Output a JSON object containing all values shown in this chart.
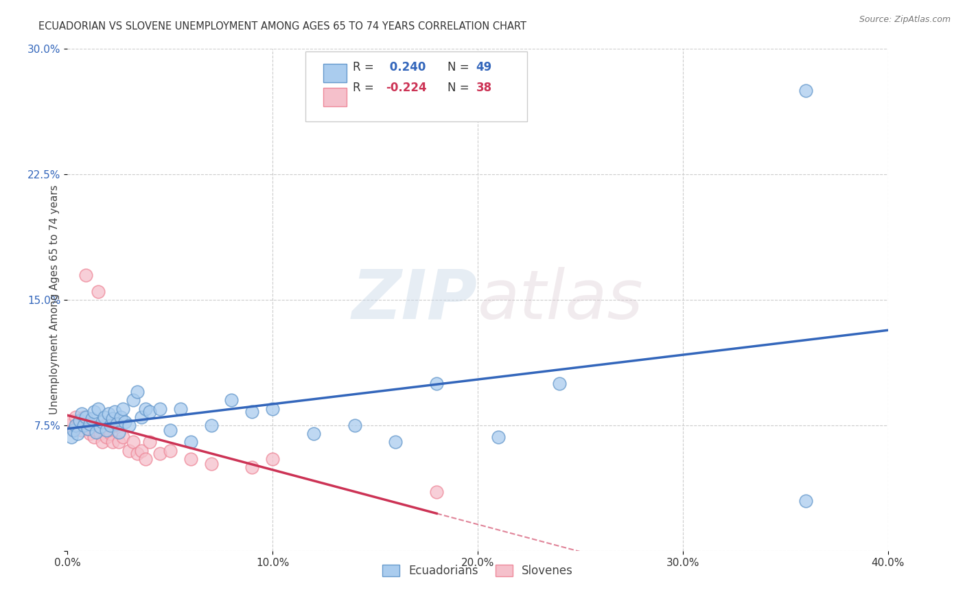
{
  "title": "ECUADORIAN VS SLOVENE UNEMPLOYMENT AMONG AGES 65 TO 74 YEARS CORRELATION CHART",
  "source": "Source: ZipAtlas.com",
  "ylabel": "Unemployment Among Ages 65 to 74 years",
  "xlim": [
    0.0,
    0.4
  ],
  "ylim": [
    0.0,
    0.3
  ],
  "xticks": [
    0.0,
    0.1,
    0.2,
    0.3,
    0.4
  ],
  "yticks": [
    0.0,
    0.075,
    0.15,
    0.225,
    0.3
  ],
  "xticklabels": [
    "0.0%",
    "10.0%",
    "20.0%",
    "30.0%",
    "40.0%"
  ],
  "yticklabels": [
    "",
    "7.5%",
    "15.0%",
    "22.5%",
    "30.0%"
  ],
  "background_color": "#ffffff",
  "grid_color": "#cccccc",
  "watermark_zip": "ZIP",
  "watermark_atlas": "atlas",
  "blue_edge": "#6699cc",
  "blue_fill": "#aaccee",
  "pink_edge": "#ee8899",
  "pink_fill": "#f5c0cb",
  "blue_line_color": "#3366bb",
  "pink_line_color": "#cc3355",
  "blue_R": 0.24,
  "blue_N": 49,
  "pink_R": -0.224,
  "pink_N": 38,
  "ecuadorians_x": [
    0.002,
    0.003,
    0.004,
    0.005,
    0.006,
    0.007,
    0.008,
    0.009,
    0.01,
    0.011,
    0.012,
    0.013,
    0.014,
    0.015,
    0.016,
    0.017,
    0.018,
    0.019,
    0.02,
    0.021,
    0.022,
    0.023,
    0.024,
    0.025,
    0.026,
    0.027,
    0.028,
    0.03,
    0.032,
    0.034,
    0.036,
    0.038,
    0.04,
    0.045,
    0.05,
    0.055,
    0.06,
    0.07,
    0.08,
    0.09,
    0.1,
    0.12,
    0.14,
    0.16,
    0.18,
    0.21,
    0.24,
    0.36,
    0.36
  ],
  "ecuadorians_y": [
    0.068,
    0.072,
    0.075,
    0.07,
    0.078,
    0.082,
    0.075,
    0.08,
    0.073,
    0.076,
    0.079,
    0.083,
    0.071,
    0.085,
    0.074,
    0.077,
    0.08,
    0.072,
    0.082,
    0.075,
    0.079,
    0.083,
    0.076,
    0.071,
    0.08,
    0.085,
    0.077,
    0.075,
    0.09,
    0.095,
    0.08,
    0.085,
    0.083,
    0.085,
    0.072,
    0.085,
    0.065,
    0.075,
    0.09,
    0.083,
    0.085,
    0.07,
    0.075,
    0.065,
    0.1,
    0.068,
    0.1,
    0.275,
    0.03
  ],
  "slovenes_x": [
    0.001,
    0.002,
    0.003,
    0.004,
    0.005,
    0.006,
    0.007,
    0.008,
    0.009,
    0.01,
    0.011,
    0.012,
    0.013,
    0.014,
    0.015,
    0.016,
    0.017,
    0.018,
    0.019,
    0.02,
    0.021,
    0.022,
    0.023,
    0.025,
    0.027,
    0.03,
    0.032,
    0.034,
    0.036,
    0.038,
    0.04,
    0.045,
    0.05,
    0.06,
    0.07,
    0.09,
    0.1,
    0.18
  ],
  "slovenes_y": [
    0.075,
    0.078,
    0.072,
    0.08,
    0.075,
    0.078,
    0.072,
    0.08,
    0.165,
    0.073,
    0.07,
    0.075,
    0.068,
    0.072,
    0.155,
    0.07,
    0.065,
    0.075,
    0.068,
    0.072,
    0.07,
    0.065,
    0.075,
    0.065,
    0.068,
    0.06,
    0.065,
    0.058,
    0.06,
    0.055,
    0.065,
    0.058,
    0.06,
    0.055,
    0.052,
    0.05,
    0.055,
    0.035
  ]
}
